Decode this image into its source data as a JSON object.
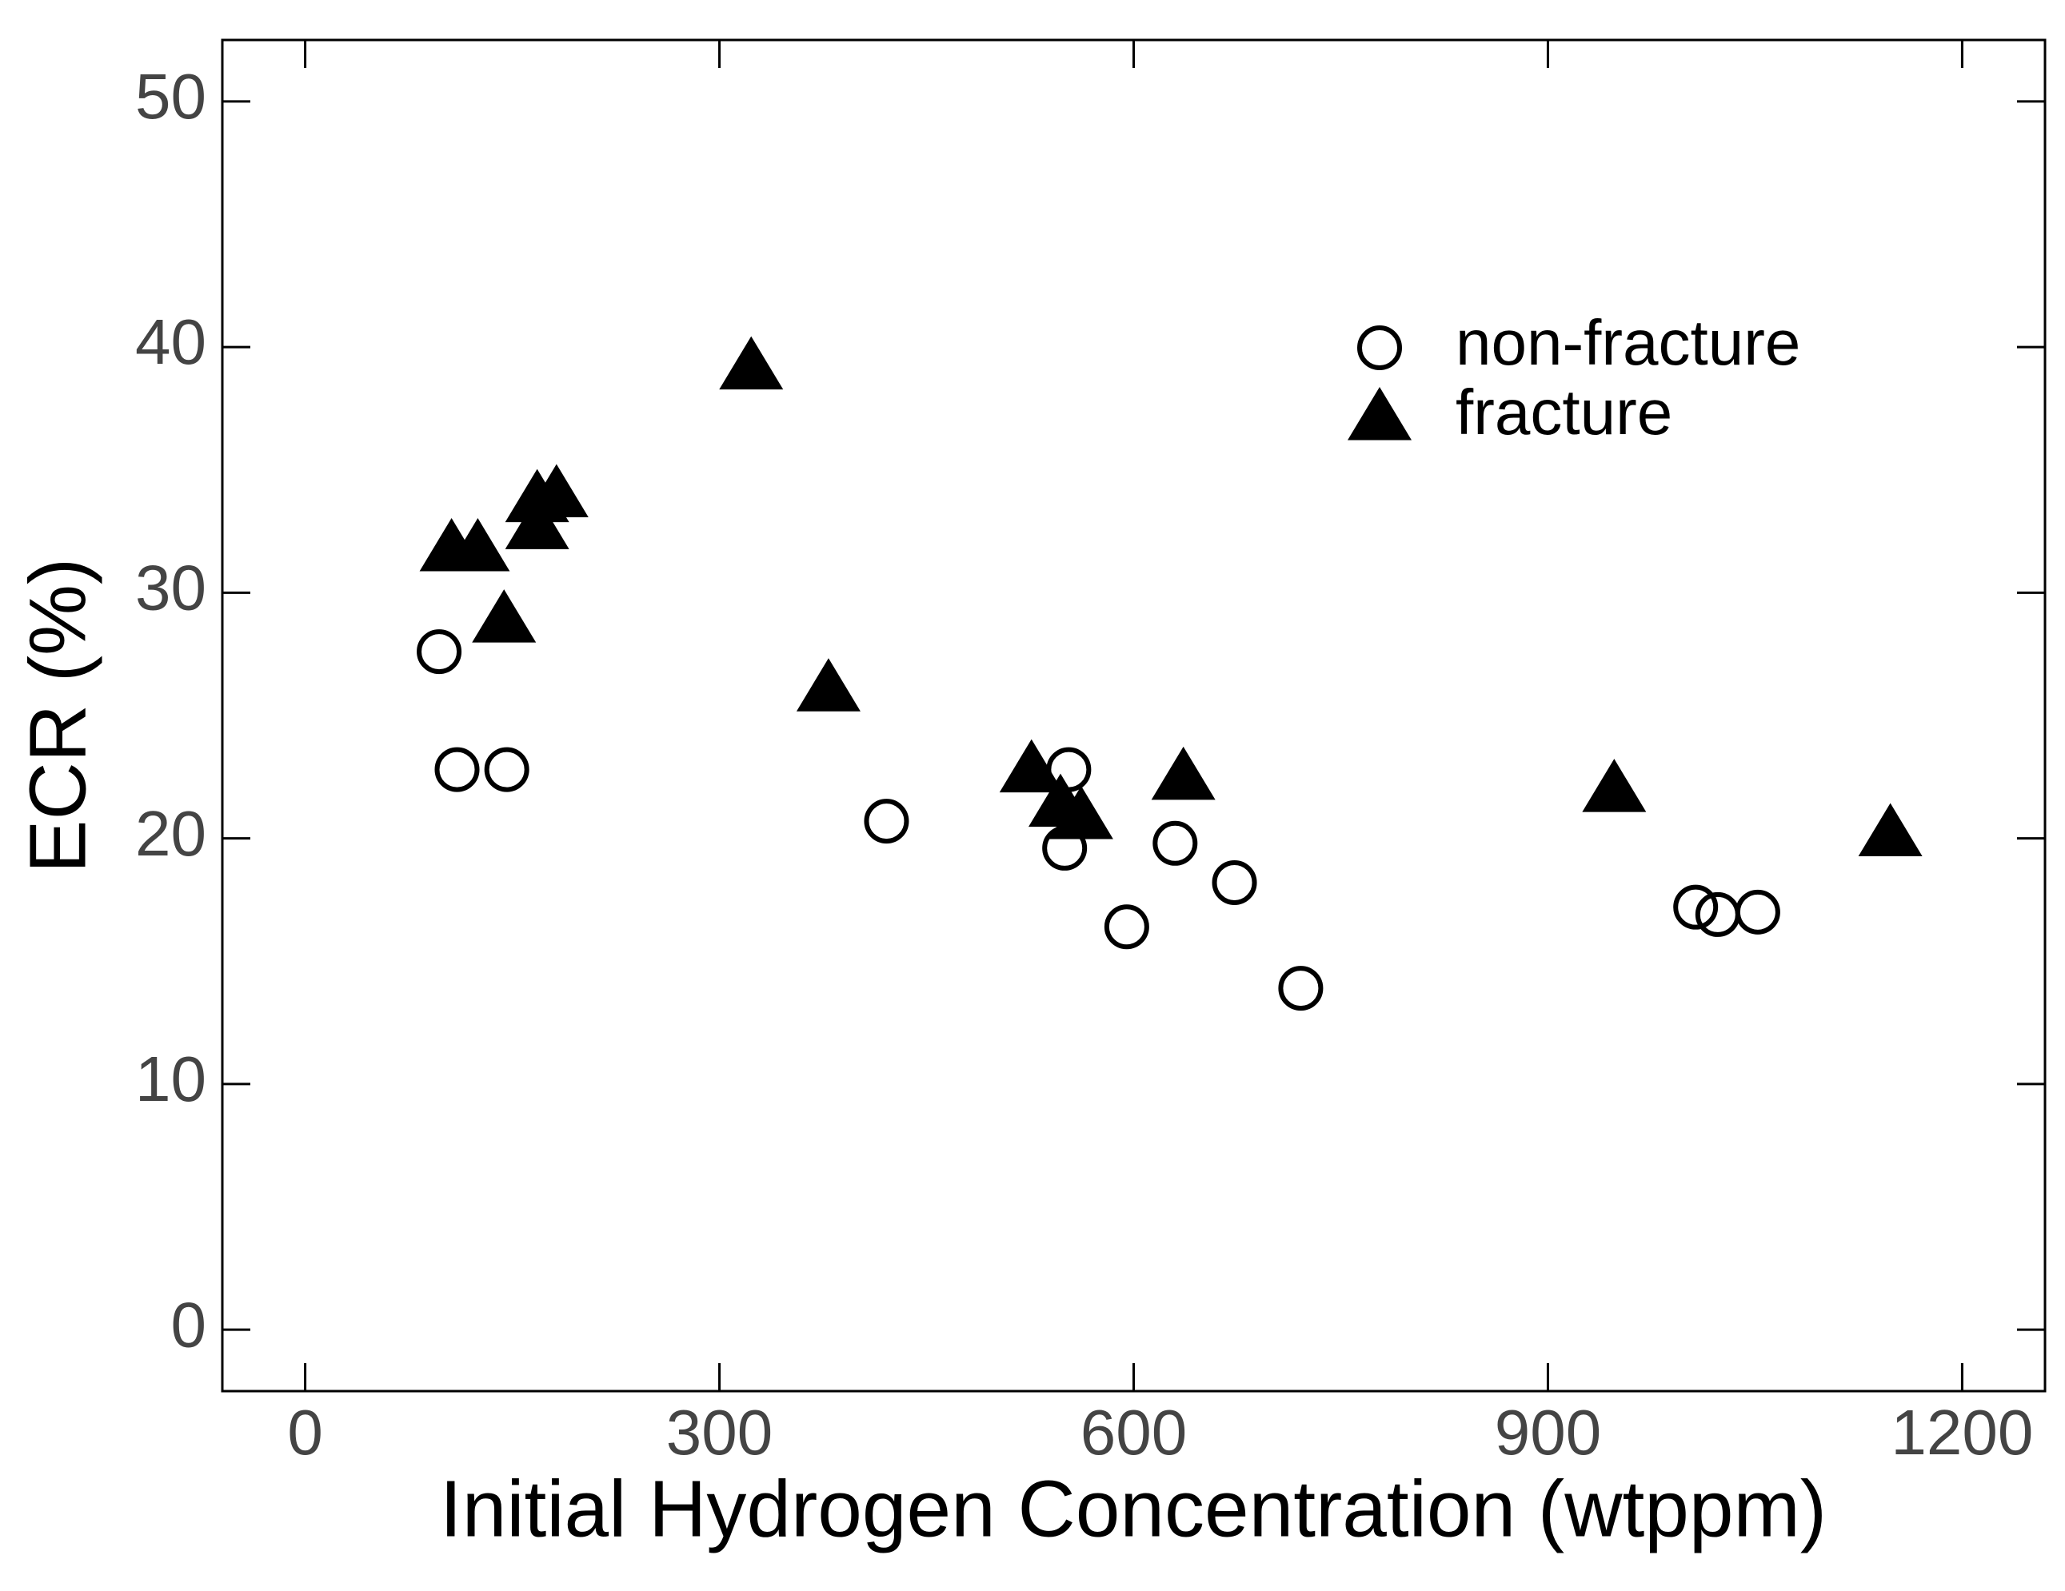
{
  "chart_data": {
    "type": "scatter",
    "xlabel": "Initial Hydrogen Concentration (wtppm)",
    "ylabel": "ECR (%)",
    "xlim": [
      -60,
      1260
    ],
    "ylim": [
      -2.5,
      52.5
    ],
    "xticks": [
      0,
      300,
      600,
      900,
      1200
    ],
    "yticks": [
      0,
      10,
      20,
      30,
      40,
      50
    ],
    "grid": false,
    "legend": "upper right",
    "series": [
      {
        "name": "non-fracture",
        "marker": "open-circle",
        "color": "#000000",
        "x": [
          97,
          110,
          146,
          421,
          553,
          550,
          595,
          630,
          673,
          721,
          1007,
          1023,
          1052
        ],
        "values": [
          27.6,
          22.8,
          22.8,
          20.7,
          22.8,
          19.6,
          16.4,
          19.8,
          18.2,
          13.9,
          17.2,
          16.9,
          17.0
        ]
      },
      {
        "name": "fracture",
        "marker": "filled-triangle",
        "color": "#000000",
        "x": [
          106,
          125,
          144,
          168,
          168,
          182,
          323,
          379,
          526,
          547,
          562,
          636,
          948,
          1148
        ],
        "values": [
          31.8,
          31.8,
          28.9,
          33.8,
          32.7,
          34.0,
          39.2,
          26.1,
          22.8,
          21.4,
          20.9,
          22.5,
          22.0,
          20.2
        ]
      }
    ]
  }
}
